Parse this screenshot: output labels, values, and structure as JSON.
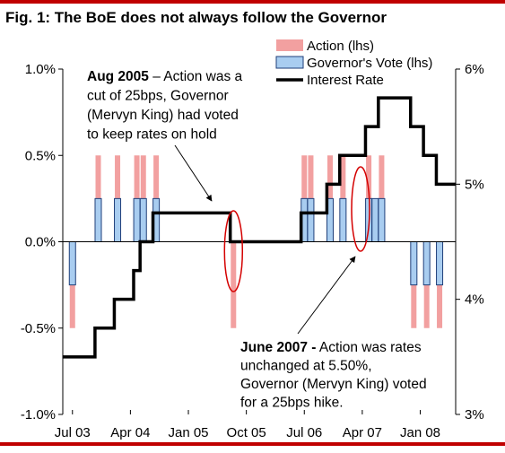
{
  "figure_title": "Fig. 1: The BoE does not always follow the Governor",
  "colors": {
    "action": "#f2a0a0",
    "vote_fill": "#a9cdf0",
    "vote_stroke": "#1f3f7a",
    "rate": "#000000",
    "ellipse": "#d40000",
    "rule": "#c00000"
  },
  "chart_data": {
    "type": "bar",
    "x_tick_labels": [
      "Jul 03",
      "Apr 04",
      "Jan 05",
      "Oct 05",
      "Jul 06",
      "Apr 07",
      "Jan 08"
    ],
    "y_left": {
      "ticks": [
        "-1.0%",
        "-0.5%",
        "0.0%",
        "0.5%",
        "1.0%"
      ],
      "range": [
        -1.0,
        1.0
      ],
      "unit": "%"
    },
    "y_right": {
      "ticks": [
        "3%",
        "4%",
        "5%",
        "6%"
      ],
      "range": [
        3,
        6
      ],
      "unit": "%"
    },
    "legend": [
      "Action (lhs)",
      "Governor's Vote (lhs)",
      "Interest Rate"
    ],
    "months": [
      "2003-06",
      "2003-07",
      "2003-08",
      "2003-09",
      "2003-10",
      "2003-11",
      "2003-12",
      "2004-01",
      "2004-02",
      "2004-03",
      "2004-04",
      "2004-05",
      "2004-06",
      "2004-07",
      "2004-08",
      "2004-09",
      "2004-10",
      "2004-11",
      "2004-12",
      "2005-01",
      "2005-02",
      "2005-03",
      "2005-04",
      "2005-05",
      "2005-06",
      "2005-07",
      "2005-08",
      "2005-09",
      "2005-10",
      "2005-11",
      "2005-12",
      "2006-01",
      "2006-02",
      "2006-03",
      "2006-04",
      "2006-05",
      "2006-06",
      "2006-07",
      "2006-08",
      "2006-09",
      "2006-10",
      "2006-11",
      "2006-12",
      "2007-01",
      "2007-02",
      "2007-03",
      "2007-04",
      "2007-05",
      "2007-06",
      "2007-07",
      "2007-08",
      "2007-09",
      "2007-10",
      "2007-11",
      "2007-12",
      "2008-01",
      "2008-02",
      "2008-03",
      "2008-04",
      "2008-05",
      "2008-06"
    ],
    "series": [
      {
        "name": "Action (lhs)",
        "values": [
          0,
          -0.5,
          0,
          0,
          0,
          0.5,
          0,
          0,
          0.5,
          0,
          0,
          0.5,
          0.5,
          0,
          0.5,
          0,
          0,
          0,
          0,
          0,
          0,
          0,
          0,
          0,
          0,
          0,
          -0.5,
          0,
          0,
          0,
          0,
          0,
          0,
          0,
          0,
          0,
          0,
          0.5,
          0.5,
          0,
          0,
          0.5,
          0,
          0.5,
          0,
          0,
          0,
          0.5,
          0,
          0.5,
          0,
          0,
          0,
          0,
          -0.5,
          0,
          -0.5,
          0,
          -0.5,
          0,
          0
        ]
      },
      {
        "name": "Governor's Vote (lhs)",
        "values": [
          0,
          -0.25,
          0,
          0,
          0,
          0.25,
          0,
          0,
          0.25,
          0,
          0,
          0.25,
          0.25,
          0,
          0.25,
          0,
          0,
          0,
          0,
          0,
          0,
          0,
          0,
          0,
          0,
          0,
          0,
          0,
          0,
          0,
          0,
          0,
          0,
          0,
          0,
          0,
          0,
          0.25,
          0.25,
          0,
          0,
          0.25,
          0,
          0.25,
          0,
          0,
          0,
          0.25,
          0.25,
          0.25,
          0,
          0,
          0,
          0,
          -0.25,
          0,
          -0.25,
          0,
          -0.25,
          0,
          0
        ]
      },
      {
        "name": "Interest Rate",
        "axis": "right",
        "values": [
          3.5,
          3.5,
          3.5,
          3.5,
          3.5,
          3.75,
          3.75,
          3.75,
          4.0,
          4.0,
          4.0,
          4.25,
          4.5,
          4.5,
          4.75,
          4.75,
          4.75,
          4.75,
          4.75,
          4.75,
          4.75,
          4.75,
          4.75,
          4.75,
          4.75,
          4.75,
          4.5,
          4.5,
          4.5,
          4.5,
          4.5,
          4.5,
          4.5,
          4.5,
          4.5,
          4.5,
          4.5,
          4.75,
          4.75,
          4.75,
          4.75,
          5.0,
          5.0,
          5.25,
          5.25,
          5.25,
          5.25,
          5.5,
          5.5,
          5.75,
          5.75,
          5.75,
          5.75,
          5.75,
          5.5,
          5.5,
          5.25,
          5.25,
          5.0,
          5.0,
          5.0
        ]
      }
    ],
    "annotations": [
      {
        "lines": [
          {
            "bold": "Aug 2005",
            "text": " – Action was a"
          },
          {
            "bold": "",
            "text": "cut of 25bps, Governor"
          },
          {
            "bold": "",
            "text": "(Mervyn King) had voted"
          },
          {
            "bold": "",
            "text": "to keep rates on hold"
          }
        ]
      },
      {
        "lines": [
          {
            "bold": "June 2007 -",
            "text": " Action was rates"
          },
          {
            "bold": "",
            "text": "unchanged at 5.50%,"
          },
          {
            "bold": "",
            "text": "Governor (Mervyn King) voted"
          },
          {
            "bold": "",
            "text": "for a 25bps hike."
          }
        ]
      }
    ]
  }
}
